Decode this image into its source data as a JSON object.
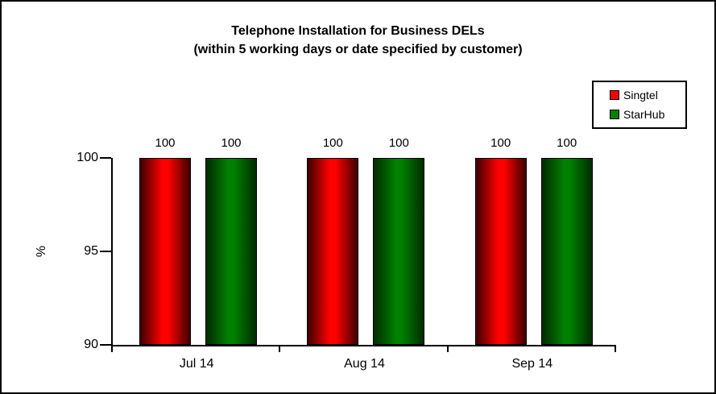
{
  "background_color": "#ffffff",
  "frame_color": "#000000",
  "chart_data": {
    "type": "bar",
    "title_line1": "Telephone Installation for Business DELs",
    "title_line2": "(within 5 working days or date specified by customer)",
    "ylabel": "%",
    "ylim": [
      90,
      100
    ],
    "yticks": [
      100,
      95,
      90
    ],
    "categories": [
      "Jul 14",
      "Aug 14",
      "Sep 14"
    ],
    "series": [
      {
        "name": "Singtel",
        "color": "#ff0000",
        "edge_color": "#3c0000",
        "values": [
          100,
          100,
          100
        ]
      },
      {
        "name": "StarHub",
        "color": "#008000",
        "edge_color": "#002b00",
        "values": [
          100,
          100,
          100
        ]
      }
    ],
    "data_labels": true,
    "grid": false,
    "legend_position": "top-right",
    "axis_color": "#000000"
  }
}
